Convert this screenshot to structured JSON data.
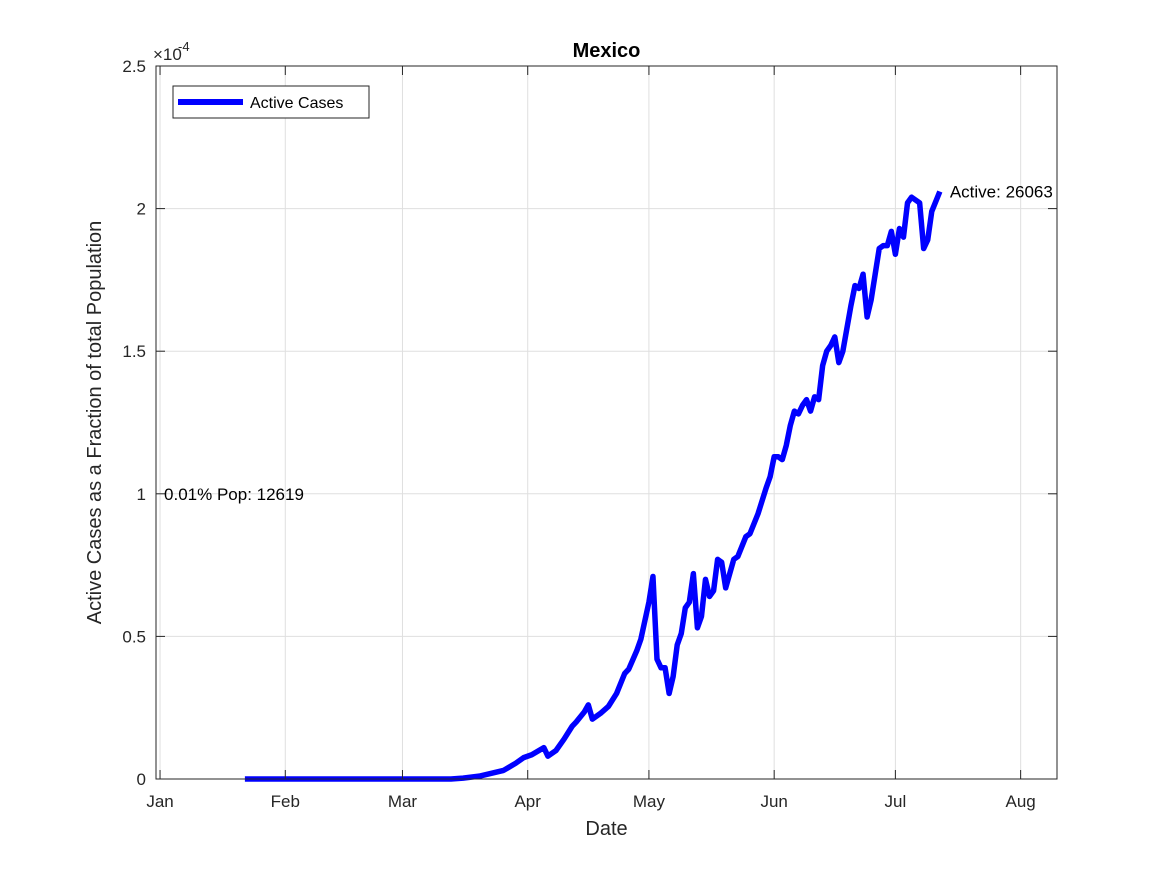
{
  "chart_data": {
    "type": "line",
    "title": "Mexico",
    "xlabel": "Date",
    "ylabel": "Active Cases as a Fraction of total Population",
    "y_exponent_label": "×10",
    "y_exponent_power": "-4",
    "y_multiplier": 0.0001,
    "xlim": [
      "2019-12-31",
      "2020-08-10"
    ],
    "ylim": [
      0,
      2.5
    ],
    "x_ticks": [
      {
        "date": "2020-01-01",
        "label": "Jan"
      },
      {
        "date": "2020-02-01",
        "label": "Feb"
      },
      {
        "date": "2020-03-01",
        "label": "Mar"
      },
      {
        "date": "2020-04-01",
        "label": "Apr"
      },
      {
        "date": "2020-05-01",
        "label": "May"
      },
      {
        "date": "2020-06-01",
        "label": "Jun"
      },
      {
        "date": "2020-07-01",
        "label": "Jul"
      },
      {
        "date": "2020-08-01",
        "label": "Aug"
      }
    ],
    "y_ticks": [
      {
        "value": 0,
        "label": "0"
      },
      {
        "value": 0.5,
        "label": "0.5"
      },
      {
        "value": 1,
        "label": "1"
      },
      {
        "value": 1.5,
        "label": "1.5"
      },
      {
        "value": 2,
        "label": "2"
      },
      {
        "value": 2.5,
        "label": "2.5"
      }
    ],
    "grid": true,
    "legend_position": "top-left",
    "series": [
      {
        "name": "Active Cases",
        "color": "#0000ff",
        "points": [
          [
            "2020-01-22",
            0
          ],
          [
            "2020-02-01",
            0
          ],
          [
            "2020-02-15",
            0
          ],
          [
            "2020-03-01",
            0
          ],
          [
            "2020-03-13",
            0
          ],
          [
            "2020-03-16",
            0.003
          ],
          [
            "2020-03-20",
            0.01
          ],
          [
            "2020-03-23",
            0.02
          ],
          [
            "2020-03-26",
            0.03
          ],
          [
            "2020-03-29",
            0.055
          ],
          [
            "2020-03-31",
            0.075
          ],
          [
            "2020-04-02",
            0.085
          ],
          [
            "2020-04-05",
            0.11
          ],
          [
            "2020-04-06",
            0.08
          ],
          [
            "2020-04-08",
            0.1
          ],
          [
            "2020-04-10",
            0.14
          ],
          [
            "2020-04-12",
            0.185
          ],
          [
            "2020-04-13",
            0.2
          ],
          [
            "2020-04-15",
            0.235
          ],
          [
            "2020-04-16",
            0.26
          ],
          [
            "2020-04-17",
            0.21
          ],
          [
            "2020-04-19",
            0.23
          ],
          [
            "2020-04-21",
            0.255
          ],
          [
            "2020-04-23",
            0.3
          ],
          [
            "2020-04-25",
            0.37
          ],
          [
            "2020-04-26",
            0.385
          ],
          [
            "2020-04-28",
            0.45
          ],
          [
            "2020-04-29",
            0.49
          ],
          [
            "2020-05-01",
            0.62
          ],
          [
            "2020-05-02",
            0.71
          ],
          [
            "2020-05-03",
            0.42
          ],
          [
            "2020-05-04",
            0.39
          ],
          [
            "2020-05-05",
            0.39
          ],
          [
            "2020-05-06",
            0.3
          ],
          [
            "2020-05-07",
            0.36
          ],
          [
            "2020-05-08",
            0.47
          ],
          [
            "2020-05-09",
            0.51
          ],
          [
            "2020-05-10",
            0.6
          ],
          [
            "2020-05-11",
            0.62
          ],
          [
            "2020-05-12",
            0.72
          ],
          [
            "2020-05-13",
            0.53
          ],
          [
            "2020-05-14",
            0.57
          ],
          [
            "2020-05-15",
            0.7
          ],
          [
            "2020-05-16",
            0.64
          ],
          [
            "2020-05-17",
            0.66
          ],
          [
            "2020-05-18",
            0.77
          ],
          [
            "2020-05-19",
            0.76
          ],
          [
            "2020-05-20",
            0.67
          ],
          [
            "2020-05-21",
            0.72
          ],
          [
            "2020-05-22",
            0.77
          ],
          [
            "2020-05-23",
            0.78
          ],
          [
            "2020-05-25",
            0.85
          ],
          [
            "2020-05-26",
            0.86
          ],
          [
            "2020-05-28",
            0.93
          ],
          [
            "2020-05-30",
            1.02
          ],
          [
            "2020-05-31",
            1.06
          ],
          [
            "2020-06-01",
            1.13
          ],
          [
            "2020-06-02",
            1.13
          ],
          [
            "2020-06-03",
            1.12
          ],
          [
            "2020-06-04",
            1.17
          ],
          [
            "2020-06-05",
            1.24
          ],
          [
            "2020-06-06",
            1.29
          ],
          [
            "2020-06-07",
            1.28
          ],
          [
            "2020-06-08",
            1.31
          ],
          [
            "2020-06-09",
            1.33
          ],
          [
            "2020-06-10",
            1.29
          ],
          [
            "2020-06-11",
            1.34
          ],
          [
            "2020-06-12",
            1.33
          ],
          [
            "2020-06-13",
            1.45
          ],
          [
            "2020-06-14",
            1.5
          ],
          [
            "2020-06-15",
            1.52
          ],
          [
            "2020-06-16",
            1.55
          ],
          [
            "2020-06-17",
            1.46
          ],
          [
            "2020-06-18",
            1.5
          ],
          [
            "2020-06-19",
            1.58
          ],
          [
            "2020-06-20",
            1.66
          ],
          [
            "2020-06-21",
            1.73
          ],
          [
            "2020-06-22",
            1.72
          ],
          [
            "2020-06-23",
            1.77
          ],
          [
            "2020-06-24",
            1.62
          ],
          [
            "2020-06-25",
            1.68
          ],
          [
            "2020-06-26",
            1.77
          ],
          [
            "2020-06-27",
            1.86
          ],
          [
            "2020-06-28",
            1.87
          ],
          [
            "2020-06-29",
            1.87
          ],
          [
            "2020-06-30",
            1.92
          ],
          [
            "2020-07-01",
            1.84
          ],
          [
            "2020-07-02",
            1.93
          ],
          [
            "2020-07-03",
            1.9
          ],
          [
            "2020-07-04",
            2.02
          ],
          [
            "2020-07-05",
            2.04
          ],
          [
            "2020-07-07",
            2.02
          ],
          [
            "2020-07-08",
            1.86
          ],
          [
            "2020-07-09",
            1.89
          ],
          [
            "2020-07-10",
            1.99
          ],
          [
            "2020-07-12",
            2.06
          ]
        ]
      }
    ],
    "annotations": [
      {
        "text": "Active: 26063",
        "anchor_date": "2020-07-12",
        "anchor_value": 2.06
      },
      {
        "text": "0.01% Pop: 12619",
        "anchor_date": "2020-01-01",
        "anchor_value": 1.0
      }
    ]
  }
}
